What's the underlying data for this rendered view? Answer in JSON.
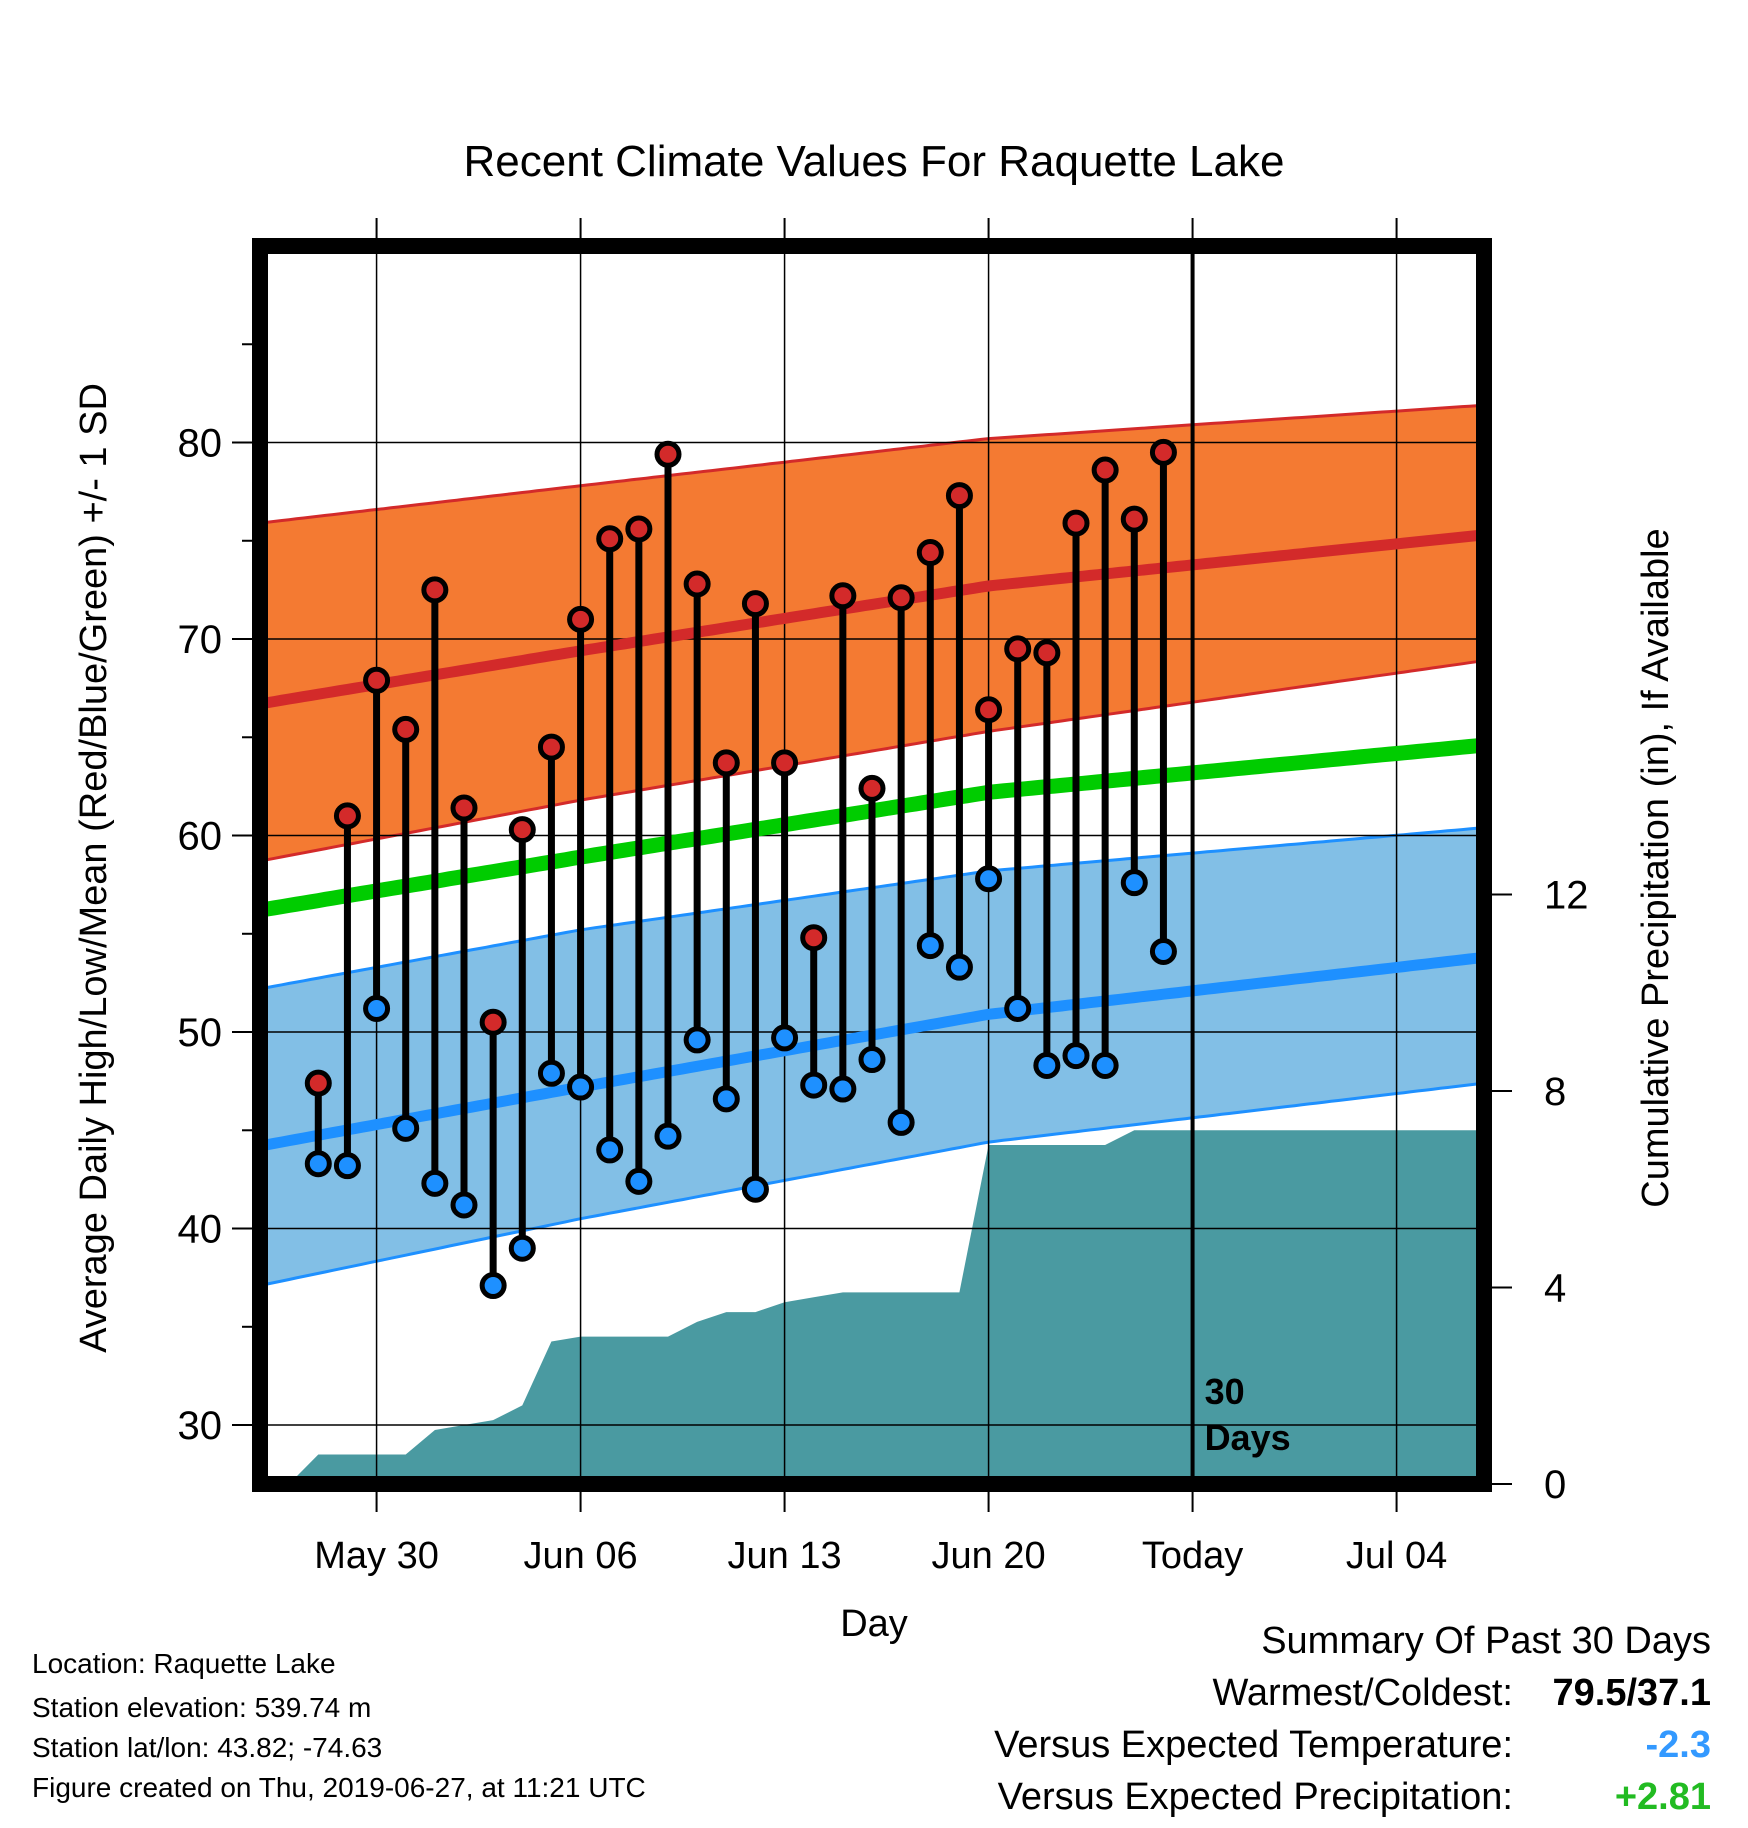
{
  "chart_data": {
    "type": "line",
    "title": "Recent Climate Values For Raquette Lake",
    "xlabel": "Day",
    "ylabel": "Average Daily High/Low/Mean (Red/Blue/Green) +/- 1 SD",
    "y2label": "Cumulative Precipitation (in), If Available",
    "xlim": [
      "2019-05-26",
      "2019-07-07"
    ],
    "ylim": [
      27,
      90
    ],
    "y2lim": [
      0,
      25.2
    ],
    "x_ticks": [
      {
        "date": "2019-05-30",
        "label": "May 30"
      },
      {
        "date": "2019-06-06",
        "label": "Jun 06"
      },
      {
        "date": "2019-06-13",
        "label": "Jun 13"
      },
      {
        "date": "2019-06-20",
        "label": "Jun 20"
      },
      {
        "date": "2019-06-27",
        "label": "Today"
      },
      {
        "date": "2019-07-04",
        "label": "Jul 04"
      }
    ],
    "y_ticks": [
      30,
      40,
      50,
      60,
      70,
      80
    ],
    "y2_ticks": [
      0,
      4,
      8,
      12
    ],
    "today": "2019-06-27",
    "today_label_number": "30",
    "today_label_unit": "Days",
    "normals": {
      "x": [
        "2019-05-26",
        "2019-06-06",
        "2019-06-20",
        "2019-07-07"
      ],
      "high_upper": [
        75.9,
        77.8,
        80.2,
        81.9
      ],
      "high_mean": [
        66.7,
        69.4,
        72.7,
        75.3
      ],
      "high_lower": [
        58.7,
        61.8,
        65.3,
        68.9
      ],
      "mean": [
        56.2,
        58.9,
        62.2,
        64.6
      ],
      "low_upper": [
        52.2,
        55.2,
        58.2,
        60.4
      ],
      "low_mean": [
        44.2,
        47.2,
        50.9,
        53.8
      ],
      "low_lower": [
        37.1,
        40.5,
        44.4,
        47.4
      ]
    },
    "series": [
      {
        "x": [
          "2019-05-28",
          "2019-05-29",
          "2019-05-30",
          "2019-05-31",
          "2019-06-01",
          "2019-06-02",
          "2019-06-03",
          "2019-06-04",
          "2019-06-05",
          "2019-06-06",
          "2019-06-07",
          "2019-06-08",
          "2019-06-09",
          "2019-06-10",
          "2019-06-11",
          "2019-06-12",
          "2019-06-13",
          "2019-06-14",
          "2019-06-15",
          "2019-06-16",
          "2019-06-17",
          "2019-06-18",
          "2019-06-19",
          "2019-06-20",
          "2019-06-21",
          "2019-06-22",
          "2019-06-23",
          "2019-06-24",
          "2019-06-25",
          "2019-06-26"
        ],
        "high": [
          47.4,
          61.0,
          67.9,
          65.4,
          72.5,
          61.4,
          50.5,
          60.3,
          64.5,
          71.0,
          75.1,
          75.6,
          79.4,
          72.8,
          63.7,
          71.8,
          63.7,
          54.8,
          72.2,
          62.4,
          72.1,
          74.4,
          77.3,
          66.4,
          69.5,
          69.3,
          75.9,
          78.6,
          76.1,
          79.5
        ],
        "low": [
          43.3,
          43.2,
          51.2,
          45.1,
          42.3,
          41.2,
          37.1,
          39.0,
          47.9,
          47.2,
          44.0,
          42.4,
          44.7,
          49.6,
          46.6,
          42.0,
          49.7,
          47.3,
          47.1,
          48.6,
          45.4,
          54.4,
          53.3,
          57.8,
          51.2,
          48.3,
          48.8,
          48.3,
          57.6,
          54.1
        ]
      }
    ],
    "precip": {
      "x": [
        "2019-05-27",
        "2019-05-28",
        "2019-05-29",
        "2019-05-30",
        "2019-05-31",
        "2019-06-01",
        "2019-06-02",
        "2019-06-03",
        "2019-06-04",
        "2019-06-05",
        "2019-06-06",
        "2019-06-07",
        "2019-06-08",
        "2019-06-09",
        "2019-06-10",
        "2019-06-11",
        "2019-06-12",
        "2019-06-13",
        "2019-06-14",
        "2019-06-15",
        "2019-06-16",
        "2019-06-17",
        "2019-06-18",
        "2019-06-19",
        "2019-06-20",
        "2019-06-21",
        "2019-06-22",
        "2019-06-23",
        "2019-06-24",
        "2019-06-25",
        "2019-06-26",
        "2019-06-27",
        "2019-07-07"
      ],
      "values": [
        0.0,
        0.6,
        0.6,
        0.6,
        0.6,
        1.1,
        1.2,
        1.3,
        1.6,
        2.9,
        3.0,
        3.0,
        3.0,
        3.0,
        3.3,
        3.5,
        3.5,
        3.7,
        3.8,
        3.9,
        3.9,
        3.9,
        3.9,
        3.9,
        6.9,
        6.9,
        6.9,
        6.9,
        6.9,
        7.2,
        7.2,
        7.2,
        7.2
      ]
    },
    "colors": {
      "high_band": "#f47a32",
      "high_line": "#d32a2a",
      "mean_line": "#00cc00",
      "low_band": "#82bfe6",
      "low_line": "#1e90ff",
      "precip": "#4a9aa1",
      "high_marker": "#d32a2a",
      "low_marker": "#1e90ff"
    }
  },
  "info": {
    "location": "Location: Raquette Lake",
    "elevation": "Station elevation: 539.74 m",
    "latlon": "Station lat/lon: 43.82; -74.63",
    "created": "Figure created on Thu, 2019-06-27, at 11:21 UTC"
  },
  "summary": {
    "heading": "Summary Of Past 30 Days",
    "warm_cold_label": "Warmest/Coldest:",
    "warm_cold_value": "79.5/37.1",
    "temp_label": "Versus Expected Temperature:",
    "temp_value": "-2.3",
    "temp_color": "#3399ff",
    "precip_label": "Versus Expected Precipitation:",
    "precip_value": "+2.81",
    "precip_color": "#22bb22"
  }
}
